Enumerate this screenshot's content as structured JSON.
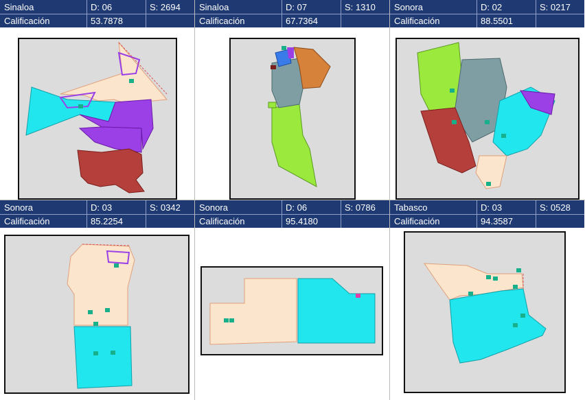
{
  "panels": [
    {
      "state": "Sinaloa",
      "district": "D: 06",
      "section": "S: 2694",
      "score_label": "Calificación",
      "score": "53.7878"
    },
    {
      "state": "Sinaloa",
      "district": "D: 07",
      "section": "S: 1310",
      "score_label": "Calificación",
      "score": "67.7364"
    },
    {
      "state": "Sonora",
      "district": "D: 02",
      "section": "S: 0217",
      "score_label": "Calificación",
      "score": "88.5501"
    },
    {
      "state": "Sonora",
      "district": "D: 03",
      "section": "S: 0342",
      "score_label": "Calificación",
      "score": "85.2254"
    },
    {
      "state": "Sonora",
      "district": "D: 06",
      "section": "S: 0786",
      "score_label": "Calificación",
      "score": "95.4180"
    },
    {
      "state": "Tabasco",
      "district": "D: 03",
      "section": "S: 0528",
      "score_label": "Calificación",
      "score": "94.3587"
    }
  ],
  "colors": {
    "header_bg": "#1f3a73",
    "map_bg": "#dcdcdc",
    "peach": "#fce5cd",
    "cyan": "#22e6ee",
    "purple": "#9b3fe6",
    "maroon": "#b5403b",
    "slate": "#7f9ea3",
    "lime": "#9be93d",
    "orange": "#d7823b",
    "marker": "#18b08a"
  },
  "icons": {
    "marker": "house-marker-icon"
  }
}
